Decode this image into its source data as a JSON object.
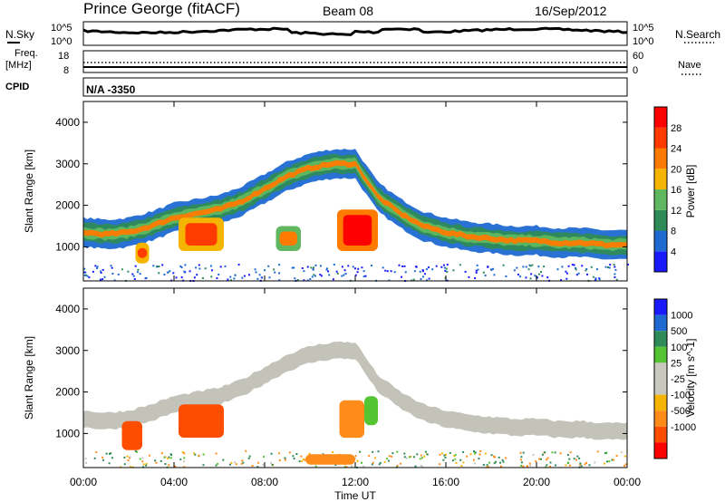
{
  "header": {
    "station": "Prince George (fitACF)",
    "beam": "Beam 08",
    "date": "16/Sep/2012"
  },
  "strips": {
    "nsky_label": "N.Sky",
    "nsearch_label": "N.Search",
    "noise_ticks_top": "10^5",
    "noise_ticks_bottom": "10^0",
    "freq_label_1": "Freq.",
    "freq_label_2": "[MHz]",
    "freq_ticks": [
      "18",
      "8"
    ],
    "nave_label": "Nave",
    "nave_ticks": [
      "60",
      "0"
    ],
    "cpid_label": "CPID",
    "cpid_value": "N/A -3350"
  },
  "colors": {
    "power_scale": [
      "#1a1aff",
      "#1e6ad2",
      "#2e8b57",
      "#5fb85f",
      "#f5b400",
      "#ff7a00",
      "#ff3b00",
      "#ff0000"
    ],
    "velocity_scale": [
      "#ff0000",
      "#ff4d00",
      "#ff8c1a",
      "#f5b400",
      "#c8c8be",
      "#c8c8be",
      "#55c433",
      "#2e8b57",
      "#1e6ad2",
      "#1a1aff"
    ],
    "ground_scatter": "#c3c3b9"
  },
  "chart_data": [
    {
      "type": "heatmap",
      "panel": "power",
      "ylabel": "Slant Range [km]",
      "xlabel": "Time UT",
      "x_ticks": [
        "00:00",
        "04:00",
        "08:00",
        "12:00",
        "16:00",
        "20:00",
        "00:00"
      ],
      "xlim": [
        0,
        24
      ],
      "y_ticks": [
        1000,
        2000,
        3000,
        4000
      ],
      "ylim": [
        180,
        4500
      ],
      "colorbar_label": "Power [dB]",
      "colorbar_ticks": [
        "4",
        "8",
        "12",
        "16",
        "20",
        "24",
        "28"
      ],
      "bands": [
        {
          "t": [
            0,
            1,
            2,
            3,
            4,
            5,
            6,
            7,
            8,
            9,
            10,
            11,
            12,
            13,
            14,
            15,
            16,
            17,
            18,
            19,
            20,
            21,
            22,
            23,
            24
          ],
          "r": [
            1350,
            1300,
            1350,
            1500,
            1700,
            1800,
            1900,
            2100,
            2400,
            2700,
            2900,
            3000,
            3000,
            2200,
            1800,
            1500,
            1350,
            1250,
            1200,
            1150,
            1150,
            1100,
            1100,
            1050,
            1050
          ],
          "level": 20
        }
      ],
      "blobs": [
        {
          "t0": 4.2,
          "t1": 6.2,
          "r0": 900,
          "r1": 1700,
          "level": 24
        },
        {
          "t0": 11.2,
          "t1": 13.0,
          "r0": 900,
          "r1": 1900,
          "level": 28
        },
        {
          "t0": 8.5,
          "t1": 9.6,
          "r0": 900,
          "r1": 1500,
          "level": 20
        },
        {
          "t0": 2.3,
          "t1": 2.9,
          "r0": 600,
          "r1": 1100,
          "level": 24
        }
      ]
    },
    {
      "type": "heatmap",
      "panel": "velocity",
      "ylabel": "Slant Range [km]",
      "xlabel": "Time UT",
      "x_ticks": [
        "00:00",
        "04:00",
        "08:00",
        "12:00",
        "16:00",
        "20:00",
        "00:00"
      ],
      "xlim": [
        0,
        24
      ],
      "y_ticks": [
        1000,
        2000,
        3000,
        4000
      ],
      "ylim": [
        180,
        4500
      ],
      "colorbar_label": "Velocity [m s^-1]",
      "colorbar_ticks": [
        "1000",
        "500",
        "100",
        "25",
        "-25",
        "-100",
        "-500",
        "-1000"
      ],
      "ground_scatter_band": {
        "t": [
          0,
          1,
          2,
          3,
          4,
          5,
          6,
          7,
          8,
          9,
          10,
          11,
          12,
          13,
          14,
          15,
          16,
          17,
          18,
          19,
          20,
          21,
          22,
          23,
          24
        ],
        "r": [
          1350,
          1300,
          1350,
          1500,
          1700,
          1800,
          1900,
          2100,
          2400,
          2700,
          2900,
          3000,
          3000,
          2200,
          1800,
          1500,
          1350,
          1250,
          1200,
          1150,
          1150,
          1100,
          1100,
          1050,
          1050
        ]
      },
      "blobs": [
        {
          "t0": 4.2,
          "t1": 6.2,
          "r0": 900,
          "r1": 1700,
          "v": -500
        },
        {
          "t0": 1.7,
          "t1": 2.6,
          "r0": 600,
          "r1": 1300,
          "v": -500
        },
        {
          "t0": 11.3,
          "t1": 12.4,
          "r0": 900,
          "r1": 1800,
          "v": -100
        },
        {
          "t0": 12.4,
          "t1": 13.0,
          "r0": 1200,
          "r1": 1900,
          "v": 100
        },
        {
          "t0": 9.8,
          "t1": 12.0,
          "r0": 250,
          "r1": 500,
          "v": -100
        }
      ]
    }
  ]
}
